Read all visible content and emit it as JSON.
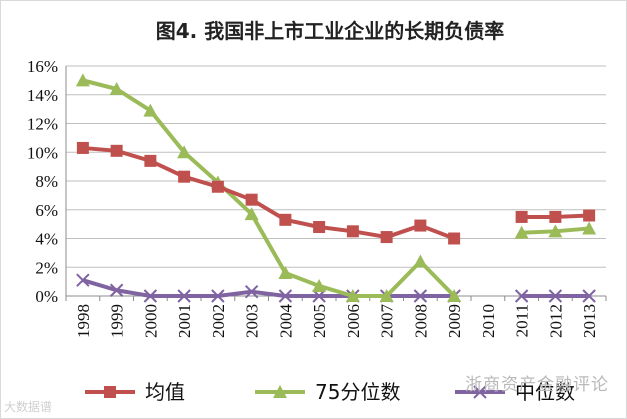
{
  "chart_data": {
    "type": "line",
    "title": "图4. 我国非上市工业企业的长期负债率",
    "categories": [
      "1998",
      "1999",
      "2000",
      "2001",
      "2002",
      "2003",
      "2004",
      "2005",
      "2006",
      "2007",
      "2008",
      "2009",
      "2010",
      "2011",
      "2012",
      "2013"
    ],
    "y_ticks": [
      "16%",
      "14%",
      "12%",
      "10%",
      "8%",
      "6%",
      "4%",
      "2%",
      "0%"
    ],
    "ylim": [
      0,
      16
    ],
    "grid": true,
    "legend_position": "bottom",
    "series": [
      {
        "name": "均值",
        "color": "#c0504d",
        "marker": "square",
        "values": [
          10.3,
          10.1,
          9.4,
          8.3,
          7.6,
          6.7,
          5.3,
          4.8,
          4.5,
          4.1,
          4.9,
          4.0,
          null,
          5.5,
          5.5,
          5.6
        ]
      },
      {
        "name": "75分位数",
        "color": "#9bbb59",
        "marker": "triangle",
        "values": [
          15.0,
          14.4,
          12.9,
          10.0,
          7.9,
          5.7,
          1.6,
          0.7,
          0.0,
          0.0,
          2.4,
          0.0,
          null,
          4.4,
          4.5,
          4.7
        ]
      },
      {
        "name": "中位数",
        "color": "#8064a2",
        "marker": "x",
        "values": [
          1.1,
          0.4,
          0.0,
          0.0,
          0.0,
          0.3,
          0.0,
          0.0,
          0.0,
          0.0,
          0.0,
          0.0,
          null,
          0.0,
          0.0,
          0.0
        ]
      }
    ]
  },
  "watermark": {
    "right": "浙商资产金融评论",
    "left": "大数据谱"
  }
}
